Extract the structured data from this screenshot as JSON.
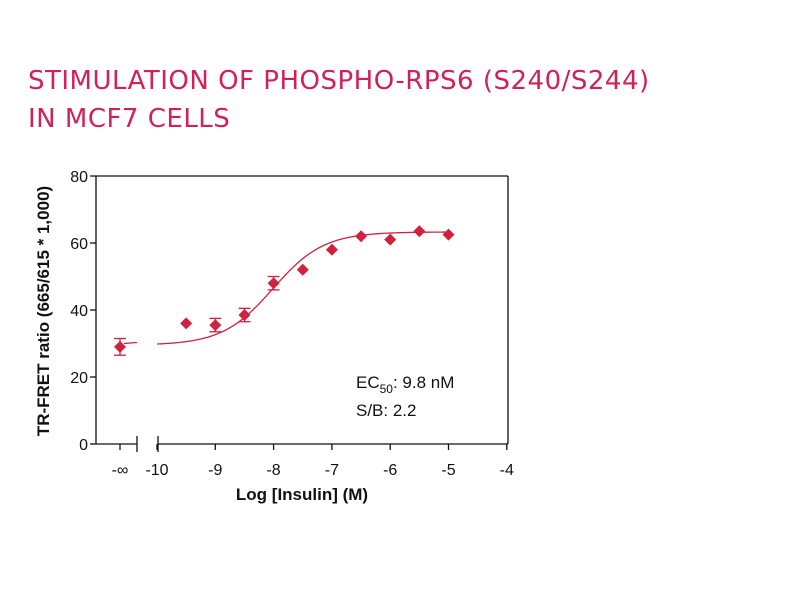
{
  "title_lines": [
    "STIMULATION OF PHOSPHO-RPS6 (S240/S244)",
    "IN MCF7 CELLS"
  ],
  "chart_data": {
    "type": "scatter",
    "xlabel": "Log [Insulin] (M)",
    "ylabel": "TR-FRET ratio (665/615 * 1,000)",
    "xlim": [
      -10,
      -4
    ],
    "ylim": [
      0,
      80
    ],
    "x_ticks": [
      "-10",
      "-9",
      "-8",
      "-7",
      "-6",
      "-5",
      "-4"
    ],
    "y_ticks": [
      "0",
      "20",
      "40",
      "60",
      "80"
    ],
    "baseline_label": "-∞",
    "baseline_point": {
      "x": "-∞",
      "y": 29,
      "err": 2.5
    },
    "points": [
      {
        "x": -9.5,
        "y": 36,
        "err": 0
      },
      {
        "x": -9.0,
        "y": 35.5,
        "err": 2
      },
      {
        "x": -8.5,
        "y": 38.5,
        "err": 2
      },
      {
        "x": -8.0,
        "y": 48,
        "err": 2
      },
      {
        "x": -7.5,
        "y": 52,
        "err": 0
      },
      {
        "x": -7.0,
        "y": 58,
        "err": 0
      },
      {
        "x": -6.5,
        "y": 62,
        "err": 0
      },
      {
        "x": -6.0,
        "y": 61,
        "err": 0
      },
      {
        "x": -5.5,
        "y": 63.5,
        "err": 0
      },
      {
        "x": -5.0,
        "y": 62.5,
        "err": 0
      }
    ],
    "fit": {
      "bottom": 29.5,
      "top": 63.3,
      "log_ec50": -8.01,
      "hill": 1.0,
      "x_start": -10,
      "x_end": -5
    },
    "annotation": {
      "ec_prefix": "EC",
      "ec_sub": "50",
      "ec_value": ": 9.8 nM",
      "sb": "S/B: 2.2"
    },
    "series_color": "#d0213f"
  }
}
